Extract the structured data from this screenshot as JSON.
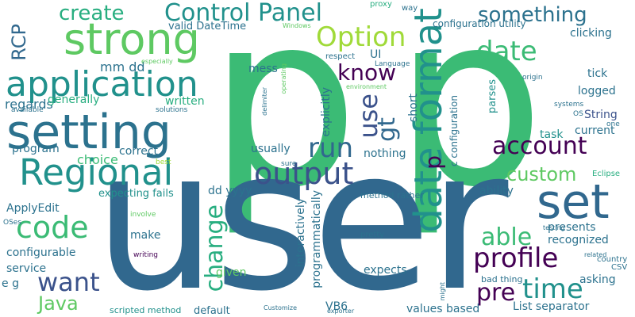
{
  "palette": {
    "dark_purple": "#440154",
    "indigo": "#3b528b",
    "navy": "#31688e",
    "blue_teal": "#2c728e",
    "teal": "#21918c",
    "sea_green": "#28ae80",
    "green": "#3bbb75",
    "light_green": "#5ec962",
    "lime": "#a0da39",
    "yellow": "#d2e21b"
  },
  "words": {
    "p_big_left": "p",
    "p_big_right": "p",
    "user": "user",
    "setting": "setting",
    "strong": "strong",
    "application": "application",
    "regional": "Regional",
    "date_format": "date format",
    "set": "set",
    "output": "output",
    "control_panel": "Control Panel",
    "option": "Option",
    "create": "create",
    "something": "something",
    "date": "date",
    "know": "know",
    "use": "use",
    "run": "run",
    "account": "account",
    "gt": "gt",
    "custom": "custom",
    "code": "code",
    "able": "able",
    "profile": "profile",
    "change": "change",
    "want": "want",
    "pre": "pre",
    "time": "time",
    "java": "Java",
    "p_small": "p",
    "rcp": "RCP",
    "regards": "regards",
    "mm_dd": "mm dd",
    "generally": "generally",
    "written": "written",
    "program": "program",
    "choice": "choice",
    "correct": "correct",
    "usually": "usually",
    "nothing": "nothing",
    "mess": "mess",
    "ui": "UI",
    "valid_datetime": "valid DateTime",
    "configuration_utility": "configuration utility",
    "clicking": "clicking",
    "tick": "tick",
    "logged": "logged",
    "current": "current",
    "string": "String",
    "task": "task",
    "parses": "parses",
    "explicitly": "explicitly",
    "short": "short",
    "c_configuration": "c configuration",
    "expecting_fails": "expecting fails",
    "dd_yyyy": "dd yyyy",
    "ability": "ability",
    "applyedit": "ApplyEdit",
    "make": "make",
    "configurable": "configurable",
    "service": "service",
    "e_g": "e g",
    "interactively": "interactively",
    "programmatically": "programmatically",
    "given": "given",
    "expects": "expects",
    "presents": "presents",
    "recognized": "recognized",
    "asking": "asking",
    "values_based": "values based",
    "list_separator": "List separator",
    "default": "default",
    "scripted_method": "scripted method",
    "vb6": "VB6",
    "method_rather": "method rather",
    "bad_thing": "bad thing",
    "pretty": "pretty",
    "csv": "CSV",
    "country": "country",
    "proxy": "proxy",
    "way": "way",
    "windows": "Windows",
    "especially": "especially",
    "respect": "respect",
    "language": "Language",
    "environment": "environment",
    "origin": "origin",
    "systems": "systems",
    "os": "OS",
    "one": "one",
    "available": "available",
    "solutions": "solutions",
    "delimiter": "delimiter",
    "operating": "operating",
    "best": "best",
    "sure": "sure",
    "eclipse": "Eclipse",
    "involve": "involve",
    "oses": "OSes",
    "writing": "writing",
    "testing": "testing",
    "related": "related",
    "might": "might",
    "customize": "Customize",
    "exporter": "exporter"
  }
}
